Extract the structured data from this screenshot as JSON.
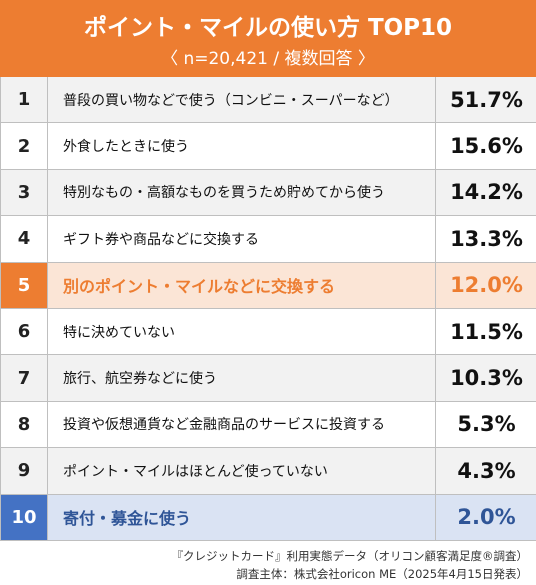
{
  "header": {
    "title": "ポイント・マイルの使い方 TOP10",
    "subtitle": "〈 n=20,421 / 複数回答 〉"
  },
  "colors": {
    "accent_orange": "#ed7d31",
    "highlight_orange_bg": "#fbe5d6",
    "accent_blue": "#4472c4",
    "highlight_blue_bg": "#dae3f3"
  },
  "chart_data": {
    "type": "table",
    "title": "ポイント・マイルの使い方 TOP10",
    "subtitle": "〈 n=20,421 / 複数回答 〉",
    "rows": [
      {
        "rank": "1",
        "label": "普段の買い物などで使う（コンビニ・スーパーなど）",
        "value": "51.7%"
      },
      {
        "rank": "2",
        "label": "外食したときに使う",
        "value": "15.6%"
      },
      {
        "rank": "3",
        "label": "特別なもの・高額なものを買うため貯めてから使う",
        "value": "14.2%"
      },
      {
        "rank": "4",
        "label": "ギフト券や商品などに交換する",
        "value": "13.3%"
      },
      {
        "rank": "5",
        "label": "別のポイント・マイルなどに交換する",
        "value": "12.0%",
        "highlight": "orange"
      },
      {
        "rank": "6",
        "label": "特に決めていない",
        "value": "11.5%"
      },
      {
        "rank": "7",
        "label": "旅行、航空券などに使う",
        "value": "10.3%"
      },
      {
        "rank": "8",
        "label": "投資や仮想通貨など金融商品のサービスに投資する",
        "value": "5.3%"
      },
      {
        "rank": "9",
        "label": "ポイント・マイルはほとんど使っていない",
        "value": "4.3%"
      },
      {
        "rank": "10",
        "label": "寄付・募金に使う",
        "value": "2.0%",
        "highlight": "blue"
      }
    ]
  },
  "footer": {
    "line1": "『クレジットカード』利用実態データ（オリコン顧客満足度®調査）",
    "line2": "調査主体：株式会社oricon ME（2025年4月15日発表）"
  }
}
